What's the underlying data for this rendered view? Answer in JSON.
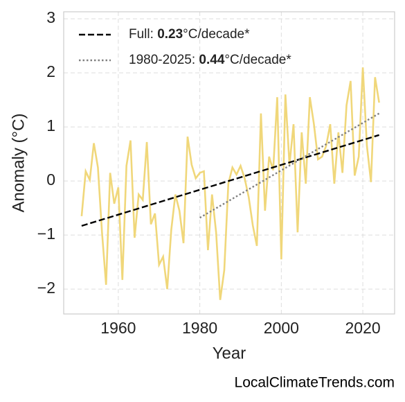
{
  "chart_data": {
    "type": "line",
    "xlabel": "Year",
    "ylabel": "Anomaly (°C)",
    "x": [
      1951,
      1952,
      1953,
      1954,
      1955,
      1956,
      1957,
      1958,
      1959,
      1960,
      1961,
      1962,
      1963,
      1964,
      1965,
      1966,
      1967,
      1968,
      1969,
      1970,
      1971,
      1972,
      1973,
      1974,
      1975,
      1976,
      1977,
      1978,
      1979,
      1980,
      1981,
      1982,
      1983,
      1984,
      1985,
      1986,
      1987,
      1988,
      1989,
      1990,
      1991,
      1992,
      1993,
      1994,
      1995,
      1996,
      1997,
      1998,
      1999,
      2000,
      2001,
      2002,
      2003,
      2004,
      2005,
      2006,
      2007,
      2008,
      2009,
      2010,
      2011,
      2012,
      2013,
      2014,
      2015,
      2016,
      2017,
      2018,
      2019,
      2020,
      2021,
      2022,
      2023,
      2024
    ],
    "series": [
      {
        "color": "#f0d77a",
        "values": [
          -0.65,
          0.18,
          0.02,
          0.7,
          0.25,
          -0.95,
          -1.92,
          0.15,
          -0.42,
          -0.12,
          -1.83,
          0.28,
          0.75,
          -1.05,
          -0.25,
          -0.35,
          0.72,
          -0.8,
          -0.6,
          -1.55,
          -1.4,
          -2.0,
          -0.9,
          -0.25,
          -0.55,
          -1.15,
          0.82,
          0.3,
          0.05,
          0.15,
          0.18,
          -1.28,
          -0.25,
          -0.95,
          -2.2,
          -1.65,
          -0.05,
          0.25,
          0.12,
          0.28,
          0.05,
          -0.3,
          -0.82,
          -1.2,
          1.25,
          -0.55,
          0.45,
          0.2,
          1.55,
          -1.45,
          1.6,
          0.3,
          1.05,
          -0.95,
          0.9,
          -0.05,
          1.55,
          1.05,
          0.4,
          0.45,
          0.65,
          1.05,
          -0.05,
          0.9,
          0.15,
          1.4,
          1.85,
          0.1,
          0.45,
          2.1,
          0.65,
          -0.02,
          1.92,
          1.45
        ]
      }
    ],
    "trends": [
      {
        "name_prefix": "Full: ",
        "rate": 0.23,
        "name_suffix": "°C/decade*",
        "color": "#000000",
        "dash": "dashed",
        "x": [
          1951,
          2024
        ],
        "values": [
          -0.83,
          0.85
        ]
      },
      {
        "name_prefix": "1980-2025: ",
        "rate": 0.44,
        "name_suffix": "°C/decade*",
        "color": "#7f7f7f",
        "dash": "dotted",
        "x": [
          1980,
          2024
        ],
        "values": [
          -0.68,
          1.25
        ]
      }
    ],
    "xlim": [
      1946.6,
      2027.8
    ],
    "ylim": [
      -2.46,
      3.13
    ],
    "xticks": [
      1960,
      1980,
      2000,
      2020
    ],
    "yticks": [
      {
        "value": -2,
        "label": "−2"
      },
      {
        "value": -1,
        "label": "−1"
      },
      0,
      1,
      2,
      3
    ],
    "grid": true,
    "legend": "upper left",
    "watermark": "LocalClimateTrends.com"
  }
}
